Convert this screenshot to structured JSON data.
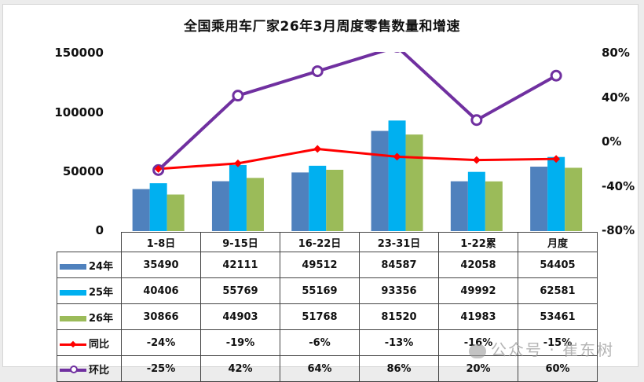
{
  "title": "全国乘用车厂家26年3月周度零售数量和增速",
  "axes": {
    "left_ticks": [
      "150000",
      "100000",
      "50000",
      "0"
    ],
    "right_ticks": [
      "80%",
      "40%",
      "0%",
      "-40%",
      "-80%"
    ]
  },
  "colors": {
    "y24": "#4f81bd",
    "y25": "#00b0f0",
    "y26": "#9bbb59",
    "yoy": "#ff0000",
    "mom": "#7030a0"
  },
  "table": {
    "columns": [
      "1-8日",
      "9-15日",
      "16-22日",
      "23-31日",
      "1-22累",
      "月度"
    ],
    "rows": [
      {
        "label": "24年",
        "swatch": "bar-24",
        "values": [
          "35490",
          "42111",
          "49512",
          "84587",
          "42058",
          "54405"
        ]
      },
      {
        "label": "25年",
        "swatch": "bar-25",
        "values": [
          "40406",
          "55769",
          "55169",
          "93356",
          "49992",
          "62581"
        ]
      },
      {
        "label": "26年",
        "swatch": "bar-26",
        "values": [
          "30866",
          "44903",
          "51768",
          "81520",
          "41983",
          "53461"
        ]
      },
      {
        "label": "同比",
        "swatch": "line-yoy",
        "values": [
          "-24%",
          "-19%",
          "-6%",
          "-13%",
          "-16%",
          "-15%"
        ]
      },
      {
        "label": "环比",
        "swatch": "line-mom",
        "values": [
          "-25%",
          "42%",
          "64%",
          "86%",
          "20%",
          "60%"
        ]
      }
    ]
  },
  "watermark": {
    "text": "公众号 · 崔东树"
  },
  "chart_data": {
    "type": "bar",
    "title": "全国乘用车厂家26年3月周度零售数量和增速",
    "categories": [
      "1-8日",
      "9-15日",
      "16-22日",
      "23-31日",
      "1-22累",
      "月度"
    ],
    "series": [
      {
        "name": "24年",
        "type": "bar",
        "axis": "left",
        "values": [
          35490,
          42111,
          49512,
          84587,
          42058,
          54405
        ]
      },
      {
        "name": "25年",
        "type": "bar",
        "axis": "left",
        "values": [
          40406,
          55769,
          55169,
          93356,
          49992,
          62581
        ]
      },
      {
        "name": "26年",
        "type": "bar",
        "axis": "left",
        "values": [
          30866,
          44903,
          51768,
          81520,
          41983,
          53461
        ]
      },
      {
        "name": "同比",
        "type": "line",
        "axis": "right",
        "unit": "%",
        "values": [
          -24,
          -19,
          -6,
          -13,
          -16,
          -15
        ]
      },
      {
        "name": "环比",
        "type": "line",
        "axis": "right",
        "unit": "%",
        "values": [
          -25,
          42,
          64,
          86,
          20,
          60
        ]
      }
    ],
    "xlabel": "",
    "ylabel": "",
    "ylim": [
      0,
      150000
    ],
    "y2lim": [
      -80,
      80
    ],
    "left_ticks": [
      0,
      50000,
      100000,
      150000
    ],
    "right_ticks": [
      -80,
      -40,
      0,
      40,
      80
    ],
    "grid": false,
    "legend_position": "data-table"
  }
}
